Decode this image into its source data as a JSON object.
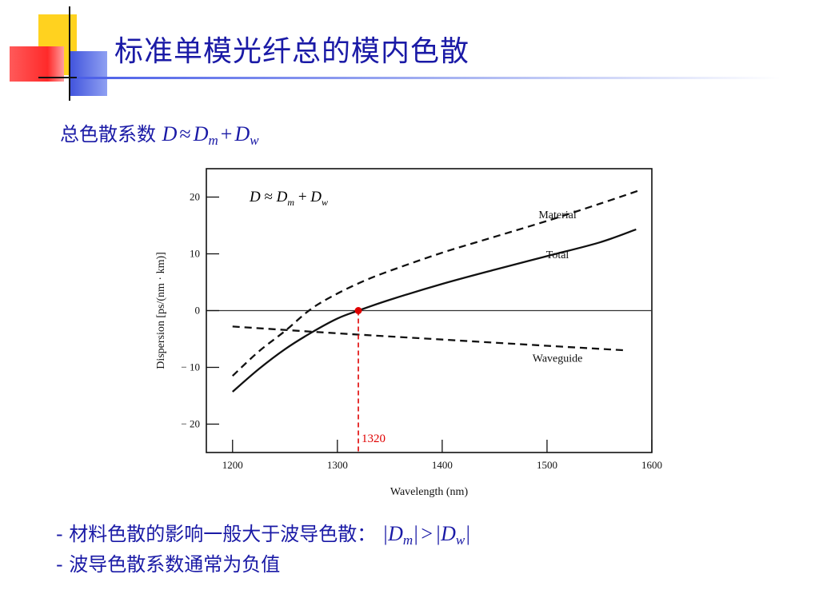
{
  "slide": {
    "title": "标准单模光纤总的模内色散",
    "formula_prefix": "总色散系数",
    "formula": {
      "D": "D",
      "approx": "≈",
      "Dm_main": "D",
      "Dm_sub": "m",
      "plus": "+",
      "Dw_main": "D",
      "Dw_sub": "w"
    },
    "bullet1_text": "- 材料色散的影响一般大于波导色散：",
    "bullet1_math": {
      "bar1": "|",
      "Dm_main": "D",
      "Dm_sub": "m",
      "bar2": "|",
      "gt": ">",
      "bar3": "|",
      "Dw_main": "D",
      "Dw_sub": "w",
      "bar4": "|"
    },
    "bullet2_text": "- 波导色散系数通常为负值"
  },
  "colors": {
    "title_blue": "#1a1aa6",
    "deco_yellow": "#ffd21f",
    "deco_red": "#ff3b3b",
    "deco_blue": "#4f61e0",
    "zero_point_red": "#e00000"
  },
  "chart_data": {
    "type": "line",
    "xlabel": "Wavelength (nm)",
    "ylabel": "Dispersion [ps/(nm · km)]",
    "xlim": [
      1175,
      1600
    ],
    "ylim": [
      -25,
      25
    ],
    "xticks": [
      1200,
      1300,
      1400,
      1500,
      1600
    ],
    "yticks": [
      -20,
      -10,
      0,
      10,
      20
    ],
    "xtick_labels": [
      "1200",
      "1300",
      "1400",
      "1500",
      "1600"
    ],
    "ytick_labels": [
      "− 20",
      "− 10",
      "0",
      "10",
      "20"
    ],
    "grid": false,
    "annotation": {
      "formula_D": "D",
      "formula_approx": "≈",
      "formula_Dm": "D",
      "formula_m": "m",
      "formula_plus": "+",
      "formula_Dw": "D",
      "formula_w": "w"
    },
    "zero_dispersion": {
      "x": 1320,
      "label": "1320"
    },
    "series": [
      {
        "name": "Material",
        "style": "dashed",
        "x": [
          1200,
          1225,
          1250,
          1275,
          1300,
          1325,
          1350,
          1400,
          1450,
          1500,
          1550,
          1590
        ],
        "y": [
          -11.5,
          -7.2,
          -3.6,
          0.3,
          3.0,
          5.2,
          7.0,
          10.2,
          13.0,
          15.8,
          18.8,
          21.3
        ]
      },
      {
        "name": "Total",
        "style": "solid",
        "x": [
          1200,
          1225,
          1250,
          1275,
          1300,
          1320,
          1350,
          1400,
          1450,
          1500,
          1550,
          1585
        ],
        "y": [
          -14.3,
          -10.3,
          -6.8,
          -3.9,
          -1.4,
          0.0,
          1.9,
          4.7,
          7.2,
          9.6,
          12.0,
          14.3
        ]
      },
      {
        "name": "Waveguide",
        "style": "dashed",
        "x": [
          1200,
          1300,
          1400,
          1500,
          1575
        ],
        "y": [
          -2.8,
          -4.0,
          -5.1,
          -6.2,
          -7.0
        ]
      }
    ],
    "series_label_anchors": [
      {
        "series": "Material",
        "x": 1510,
        "y": 16.3
      },
      {
        "series": "Total",
        "x": 1510,
        "y": 9.2
      },
      {
        "series": "Waveguide",
        "x": 1510,
        "y": -9.0
      }
    ]
  }
}
